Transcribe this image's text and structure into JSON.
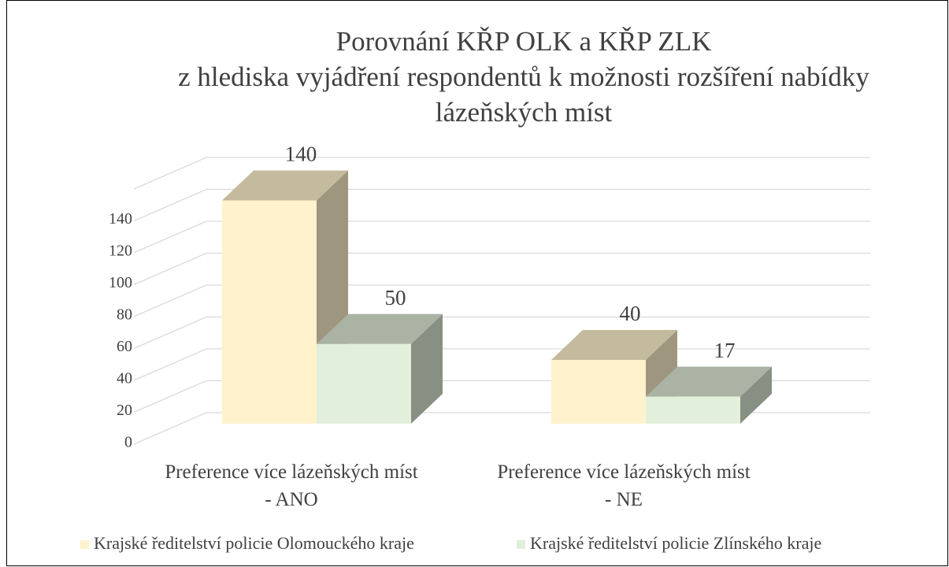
{
  "chart_data": {
    "type": "bar3d",
    "title": "Porovnání KŘP OLK a KŘP ZLK\nz hlediska vyjádření respondentů k možnosti rozšíření nabídky\nlázeňských míst",
    "categories": [
      "Preference více lázeňských míst\n- ANO",
      "Preference více lázeňských míst\n- NE"
    ],
    "series": [
      {
        "name": "Krajské ředitelství policie Olomouckého kraje",
        "color": "#fff2cc",
        "values": [
          140,
          40
        ]
      },
      {
        "name": "Krajské ředitelství policie Zlínského kraje",
        "color": "#e2efda",
        "values": [
          50,
          17
        ]
      }
    ],
    "ylim": [
      0,
      160
    ],
    "yticks": [
      0,
      20,
      40,
      60,
      80,
      100,
      120,
      140
    ],
    "grid": true,
    "legend": "bottom"
  }
}
